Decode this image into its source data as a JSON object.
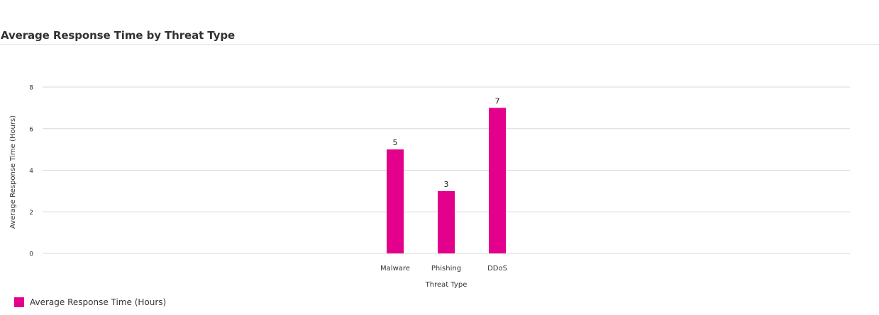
{
  "panel": {
    "title": "Average Response Time by Threat Type"
  },
  "colors": {
    "bar": "#e3008c",
    "grid": "#d8d8d8",
    "text": "#333333"
  },
  "chart_data": {
    "type": "bar",
    "title": "Average Response Time by Threat Type",
    "categories": [
      "Malware",
      "Phishing",
      "DDoS"
    ],
    "series": [
      {
        "name": "Average Response Time (Hours)",
        "values": [
          5,
          3,
          7
        ]
      }
    ],
    "xlabel": "Threat Type",
    "ylabel": "Average Response Time (Hours)",
    "ylim": [
      0,
      8
    ],
    "yticks": [
      0,
      2,
      4,
      6,
      8
    ],
    "grid": true,
    "data_labels": true,
    "legend_position": "bottom-left"
  }
}
